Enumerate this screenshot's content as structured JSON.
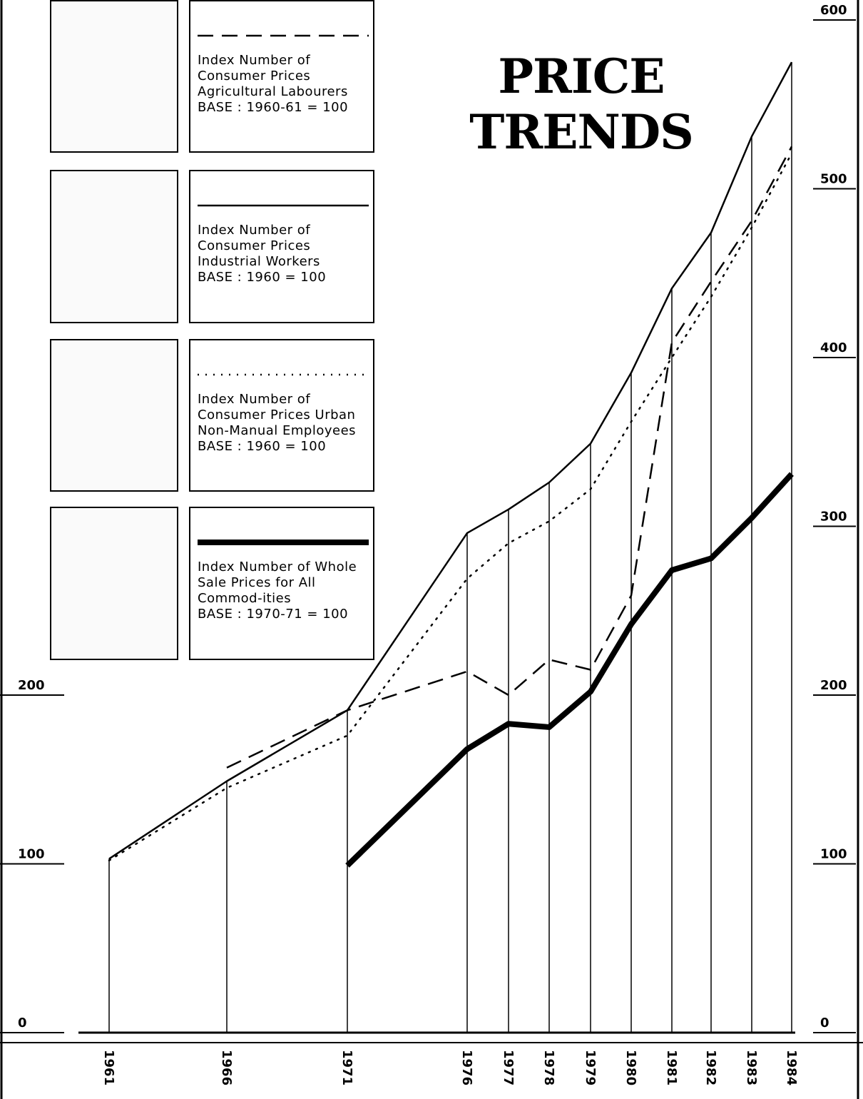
{
  "chart_data": {
    "type": "line",
    "title": "PRICE TRENDS",
    "categories": [
      "1961",
      "1966",
      "1971",
      "1976",
      "1977",
      "1978",
      "1979",
      "1980",
      "1981",
      "1982",
      "1983",
      "1984"
    ],
    "ylim": [
      0,
      600
    ],
    "yticks": [
      0,
      100,
      200
    ],
    "y2lim": [
      0,
      600
    ],
    "y2ticks": [
      0,
      100,
      200,
      300,
      400,
      500,
      600
    ],
    "series": [
      {
        "name": "Index Number of Consumer Prices Agricultural Labourers",
        "base": "BASE : 1960-61 = 100",
        "color": "#000000",
        "line_style": "dashed",
        "line_width": 2.5,
        "values": [
          null,
          157,
          191,
          214,
          200,
          221,
          215,
          259,
          409,
          445,
          481,
          525
        ]
      },
      {
        "name": "Index Number of Consumer Prices Industrial Workers",
        "base": "BASE : 1960 = 100",
        "color": "#000000",
        "line_style": "solid",
        "line_width": 2.5,
        "values": [
          103,
          149,
          191,
          296,
          310,
          326,
          349,
          391,
          441,
          474,
          531,
          575
        ]
      },
      {
        "name": "Index Number of Consumer Prices Urban Non-Manual Employees",
        "base": "BASE : 1960 = 100",
        "color": "#000000",
        "line_style": "dotted",
        "line_width": 2.5,
        "values": [
          102,
          145,
          176,
          269,
          290,
          303,
          322,
          362,
          400,
          436,
          477,
          521
        ]
      },
      {
        "name": "Index Number of Whole Sale Prices for All Commod-ities",
        "base": "BASE : 1970-71 = 100",
        "color": "#000000",
        "line_style": "solid",
        "line_width": 8,
        "values": [
          null,
          null,
          99,
          168,
          183,
          181,
          202,
          242,
          274,
          281,
          305,
          331
        ]
      }
    ]
  }
}
